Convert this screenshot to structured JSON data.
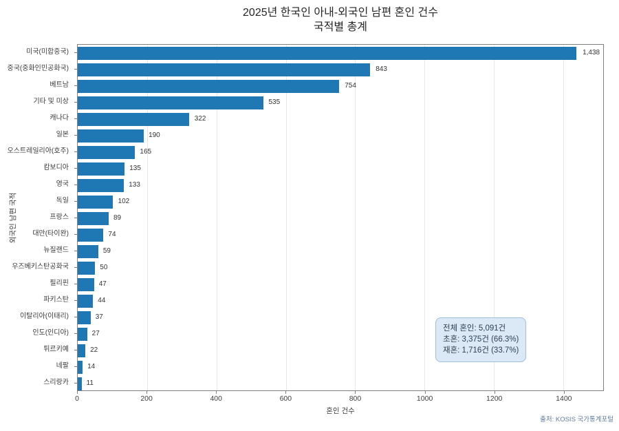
{
  "title": {
    "line1": "2025년 한국인 아내-외국인 남편 혼인 건수",
    "line2": "국적별 총계"
  },
  "chart_data": {
    "type": "bar",
    "orientation": "horizontal",
    "title": "2025년 한국인 아내-외국인 남편 혼인 건수 국적별 총계",
    "categories": [
      "미국(미합중국)",
      "중국(중화인민공화국)",
      "베트남",
      "기타 및 미상",
      "캐나다",
      "일본",
      "오스트레일리아(호주)",
      "캄보디아",
      "영국",
      "독일",
      "프랑스",
      "대만(타이완)",
      "뉴질랜드",
      "우즈베키스탄공화국",
      "필리핀",
      "파키스탄",
      "이탈리아(이태리)",
      "인도(인디아)",
      "튀르키예",
      "네팔",
      "스리랑카"
    ],
    "values": [
      1438,
      843,
      754,
      535,
      322,
      190,
      165,
      135,
      133,
      102,
      89,
      74,
      59,
      50,
      47,
      44,
      37,
      27,
      22,
      14,
      11
    ],
    "value_labels": [
      "1,438",
      "843",
      "754",
      "535",
      "322",
      "190",
      "165",
      "135",
      "133",
      "102",
      "89",
      "74",
      "59",
      "50",
      "47",
      "44",
      "37",
      "27",
      "22",
      "14",
      "11"
    ],
    "xlabel": "혼인 건수",
    "ylabel": "외국인 남편 국적",
    "xlim": [
      0,
      1515
    ],
    "xticks": [
      0,
      200,
      400,
      600,
      800,
      1000,
      1200,
      1400
    ],
    "grid": "vertical",
    "legend": "none",
    "bar_color": "#1f77b4"
  },
  "annotation": {
    "line1": "전체 혼인: 5,091건",
    "line2": "초혼: 3,375건 (66.3%)",
    "line3": "재혼: 1,716건 (33.7%)"
  },
  "source": "출처: KOSIS 국가통계포털",
  "colors": {
    "bar": "#1f77b4",
    "spine": "#7f7f7f",
    "gridline": "#e6e6e6",
    "annotation_bg": "#dbe9f6",
    "annotation_border": "#9dbfdc",
    "annotation_text": "#2e3f50",
    "source_text": "#5f7d9c"
  }
}
